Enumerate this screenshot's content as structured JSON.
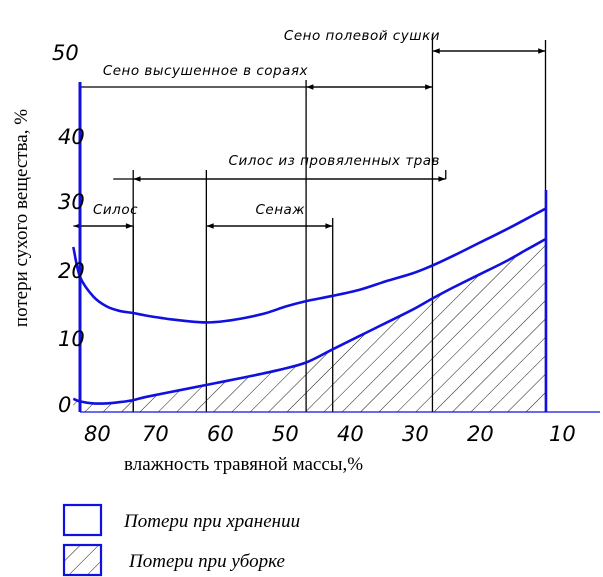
{
  "chart_data": {
    "type": "line",
    "xlabel": "влажность травяной массы,%",
    "ylabel": "потери сухого вещества, %",
    "xlim": [
      81,
      10
    ],
    "ylim": [
      0,
      50
    ],
    "x_ticks": [
      "80",
      "70",
      "60",
      "50",
      "40",
      "30",
      "20",
      "10"
    ],
    "y_ticks": [
      "0",
      "10",
      "20",
      "30",
      "40",
      "50"
    ],
    "series": [
      {
        "name": "Потери при хранении",
        "x": [
          81,
          80,
          78,
          76,
          74,
          72,
          70,
          66,
          62,
          60,
          58,
          55,
          52,
          49,
          46,
          42,
          38,
          34,
          30,
          27,
          24,
          20,
          16,
          13,
          10
        ],
        "y": [
          25,
          20.5,
          17.5,
          16,
          15.3,
          15,
          14.6,
          14,
          13.6,
          13.6,
          13.8,
          14.3,
          15,
          16,
          16.8,
          17.6,
          18.5,
          19.8,
          21,
          22.2,
          23.6,
          25.6,
          27.6,
          29.2,
          30.8
        ]
      },
      {
        "name": "Потери при уборке",
        "x": [
          81,
          80,
          78,
          76,
          74,
          72,
          70,
          65,
          60,
          55,
          50,
          46,
          42,
          38,
          34,
          30,
          27,
          24,
          20,
          16,
          13,
          10
        ],
        "y": [
          2,
          1.6,
          1.3,
          1.3,
          1.5,
          1.8,
          2.3,
          3.3,
          4.3,
          5.3,
          6.4,
          7.5,
          9.5,
          11.5,
          13.5,
          15.5,
          17.2,
          18.8,
          20.8,
          22.8,
          24.5,
          26.2
        ]
      }
    ],
    "regions": [
      {
        "label": "Сено полевой сушки",
        "x_from": 27,
        "x_to": 10
      },
      {
        "label": "Сено высушенное в сораях",
        "x_from": 46,
        "x_to": 27
      },
      {
        "label": "Силос из провяленных трав",
        "x_from": 72,
        "x_to": 25
      },
      {
        "label": "Силос",
        "x_from": 81,
        "x_to": 72
      },
      {
        "label": "Сенаж",
        "x_from": 61,
        "x_to": 42
      }
    ],
    "legend": [
      {
        "label": "Потери при хранении",
        "swatch": "outline"
      },
      {
        "label": "Потери при уборке",
        "swatch": "hatched"
      }
    ],
    "colors": {
      "curves": "#1010e0",
      "axes": "#1010e0",
      "annotations": "#000000"
    }
  }
}
